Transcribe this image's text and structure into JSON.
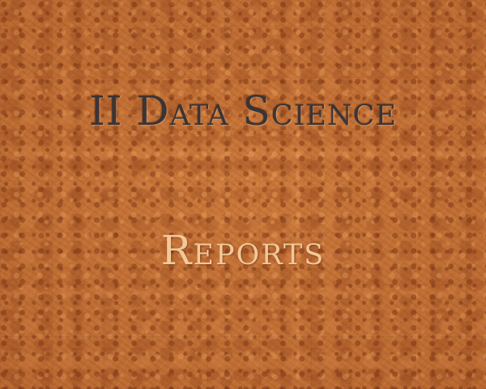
{
  "slide": {
    "title": "II Data Science",
    "subtitle": "Reports"
  },
  "colors": {
    "background": "#c8773a",
    "title": "#3a3436",
    "subtitle": "#f2c899"
  }
}
